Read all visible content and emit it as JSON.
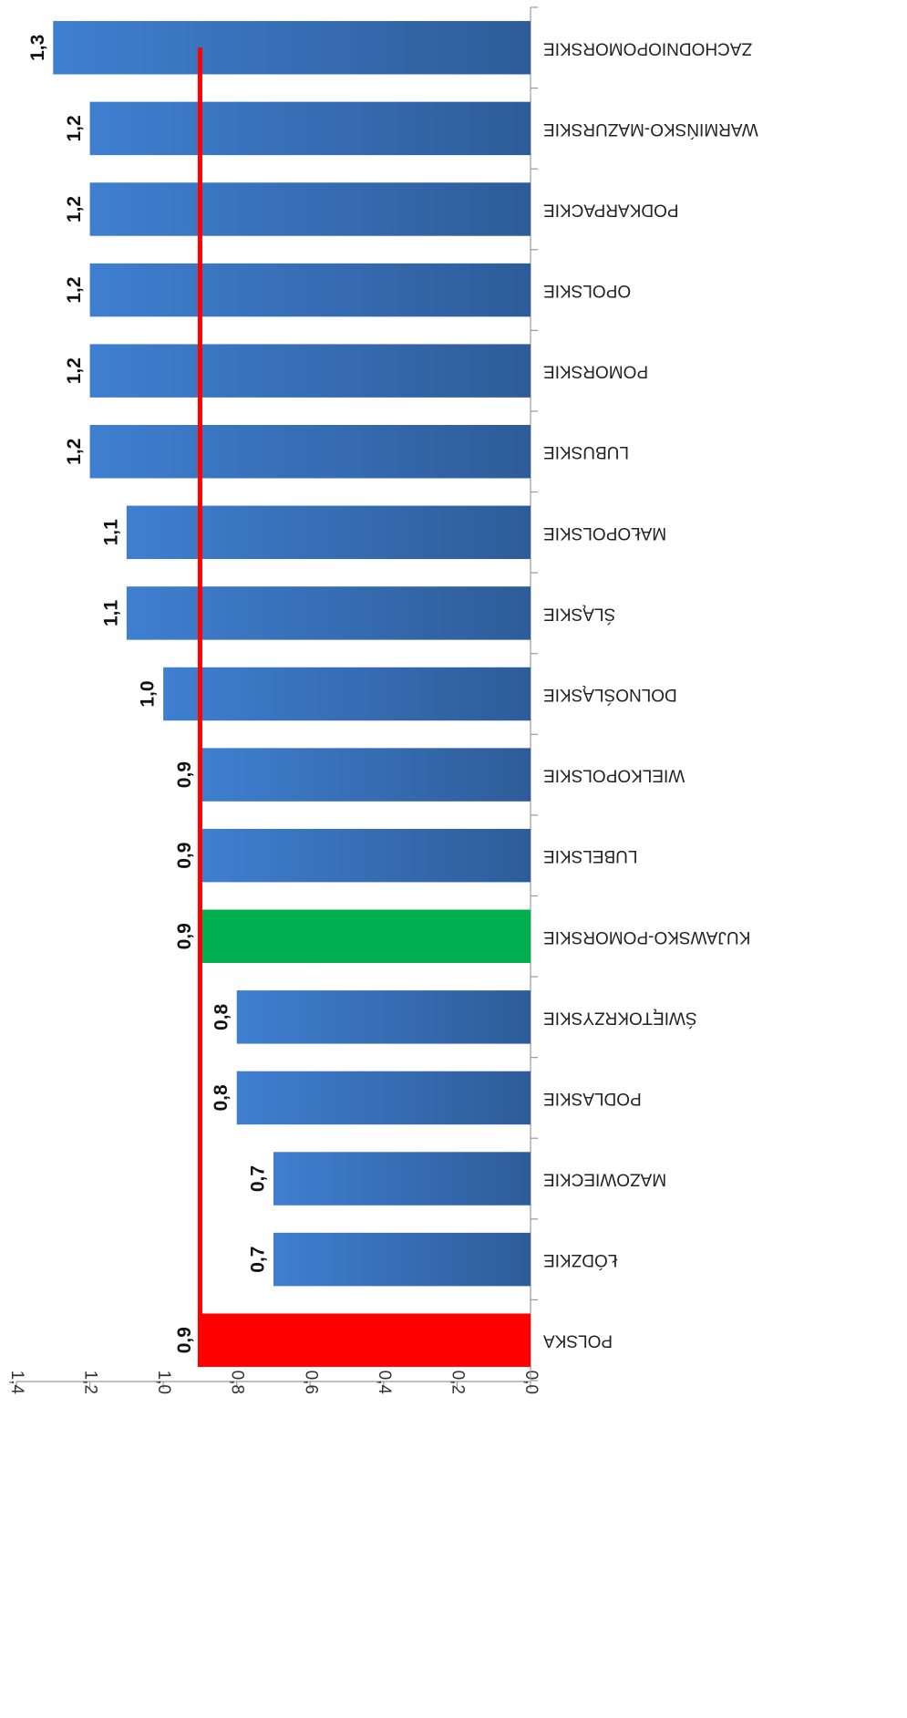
{
  "chart_data": {
    "type": "bar",
    "orientation": "horizontal",
    "render_rotated": "180deg",
    "categories": [
      "POLSKA",
      "ŁÓDZKIE",
      "MAZOWIECKIE",
      "PODLASKIE",
      "ŚWIĘTOKRZYSKIE",
      "KUJAWSKO-POMORSKIE",
      "LUBELSKIE",
      "WIELKOPOLSKIE",
      "DOLNOŚLĄSKIE",
      "ŚLĄSKIE",
      "MAŁOPOLSKIE",
      "LUBUSKIE",
      "POMORSKIE",
      "OPOLSKIE",
      "PODKARPACKIE",
      "WARMIŃSKO-MAZURSKIE",
      "ZACHODNIOPOMORSKIE"
    ],
    "values": [
      0.9,
      0.7,
      0.7,
      0.8,
      0.8,
      0.9,
      0.9,
      0.9,
      1.0,
      1.1,
      1.1,
      1.2,
      1.2,
      1.2,
      1.2,
      1.2,
      1.3
    ],
    "data_labels": [
      "0,9",
      "0,7",
      "0,7",
      "0,8",
      "0,8",
      "0,9",
      "0,9",
      "0,9",
      "1,0",
      "1,1",
      "1,1",
      "1,2",
      "1,2",
      "1,2",
      "1,2",
      "1,2",
      "1,3"
    ],
    "highlight": {
      "POLSKA": "#ff0000",
      "KUJAWSKO-POMORSKIE": "#00b050"
    },
    "default_color": "#3a6fb8",
    "gradient": [
      "#2e5c99",
      "#3f7fd0"
    ],
    "reference_line": {
      "value": 0.9,
      "color": "#ff0000"
    },
    "xlim": [
      0.0,
      1.4
    ],
    "xticks": [
      "0,0",
      "0,2",
      "0,4",
      "0,6",
      "0,8",
      "1,0",
      "1,2",
      "1,4"
    ],
    "title": "",
    "xlabel": "",
    "ylabel": "",
    "grid": false,
    "legend": "none"
  }
}
